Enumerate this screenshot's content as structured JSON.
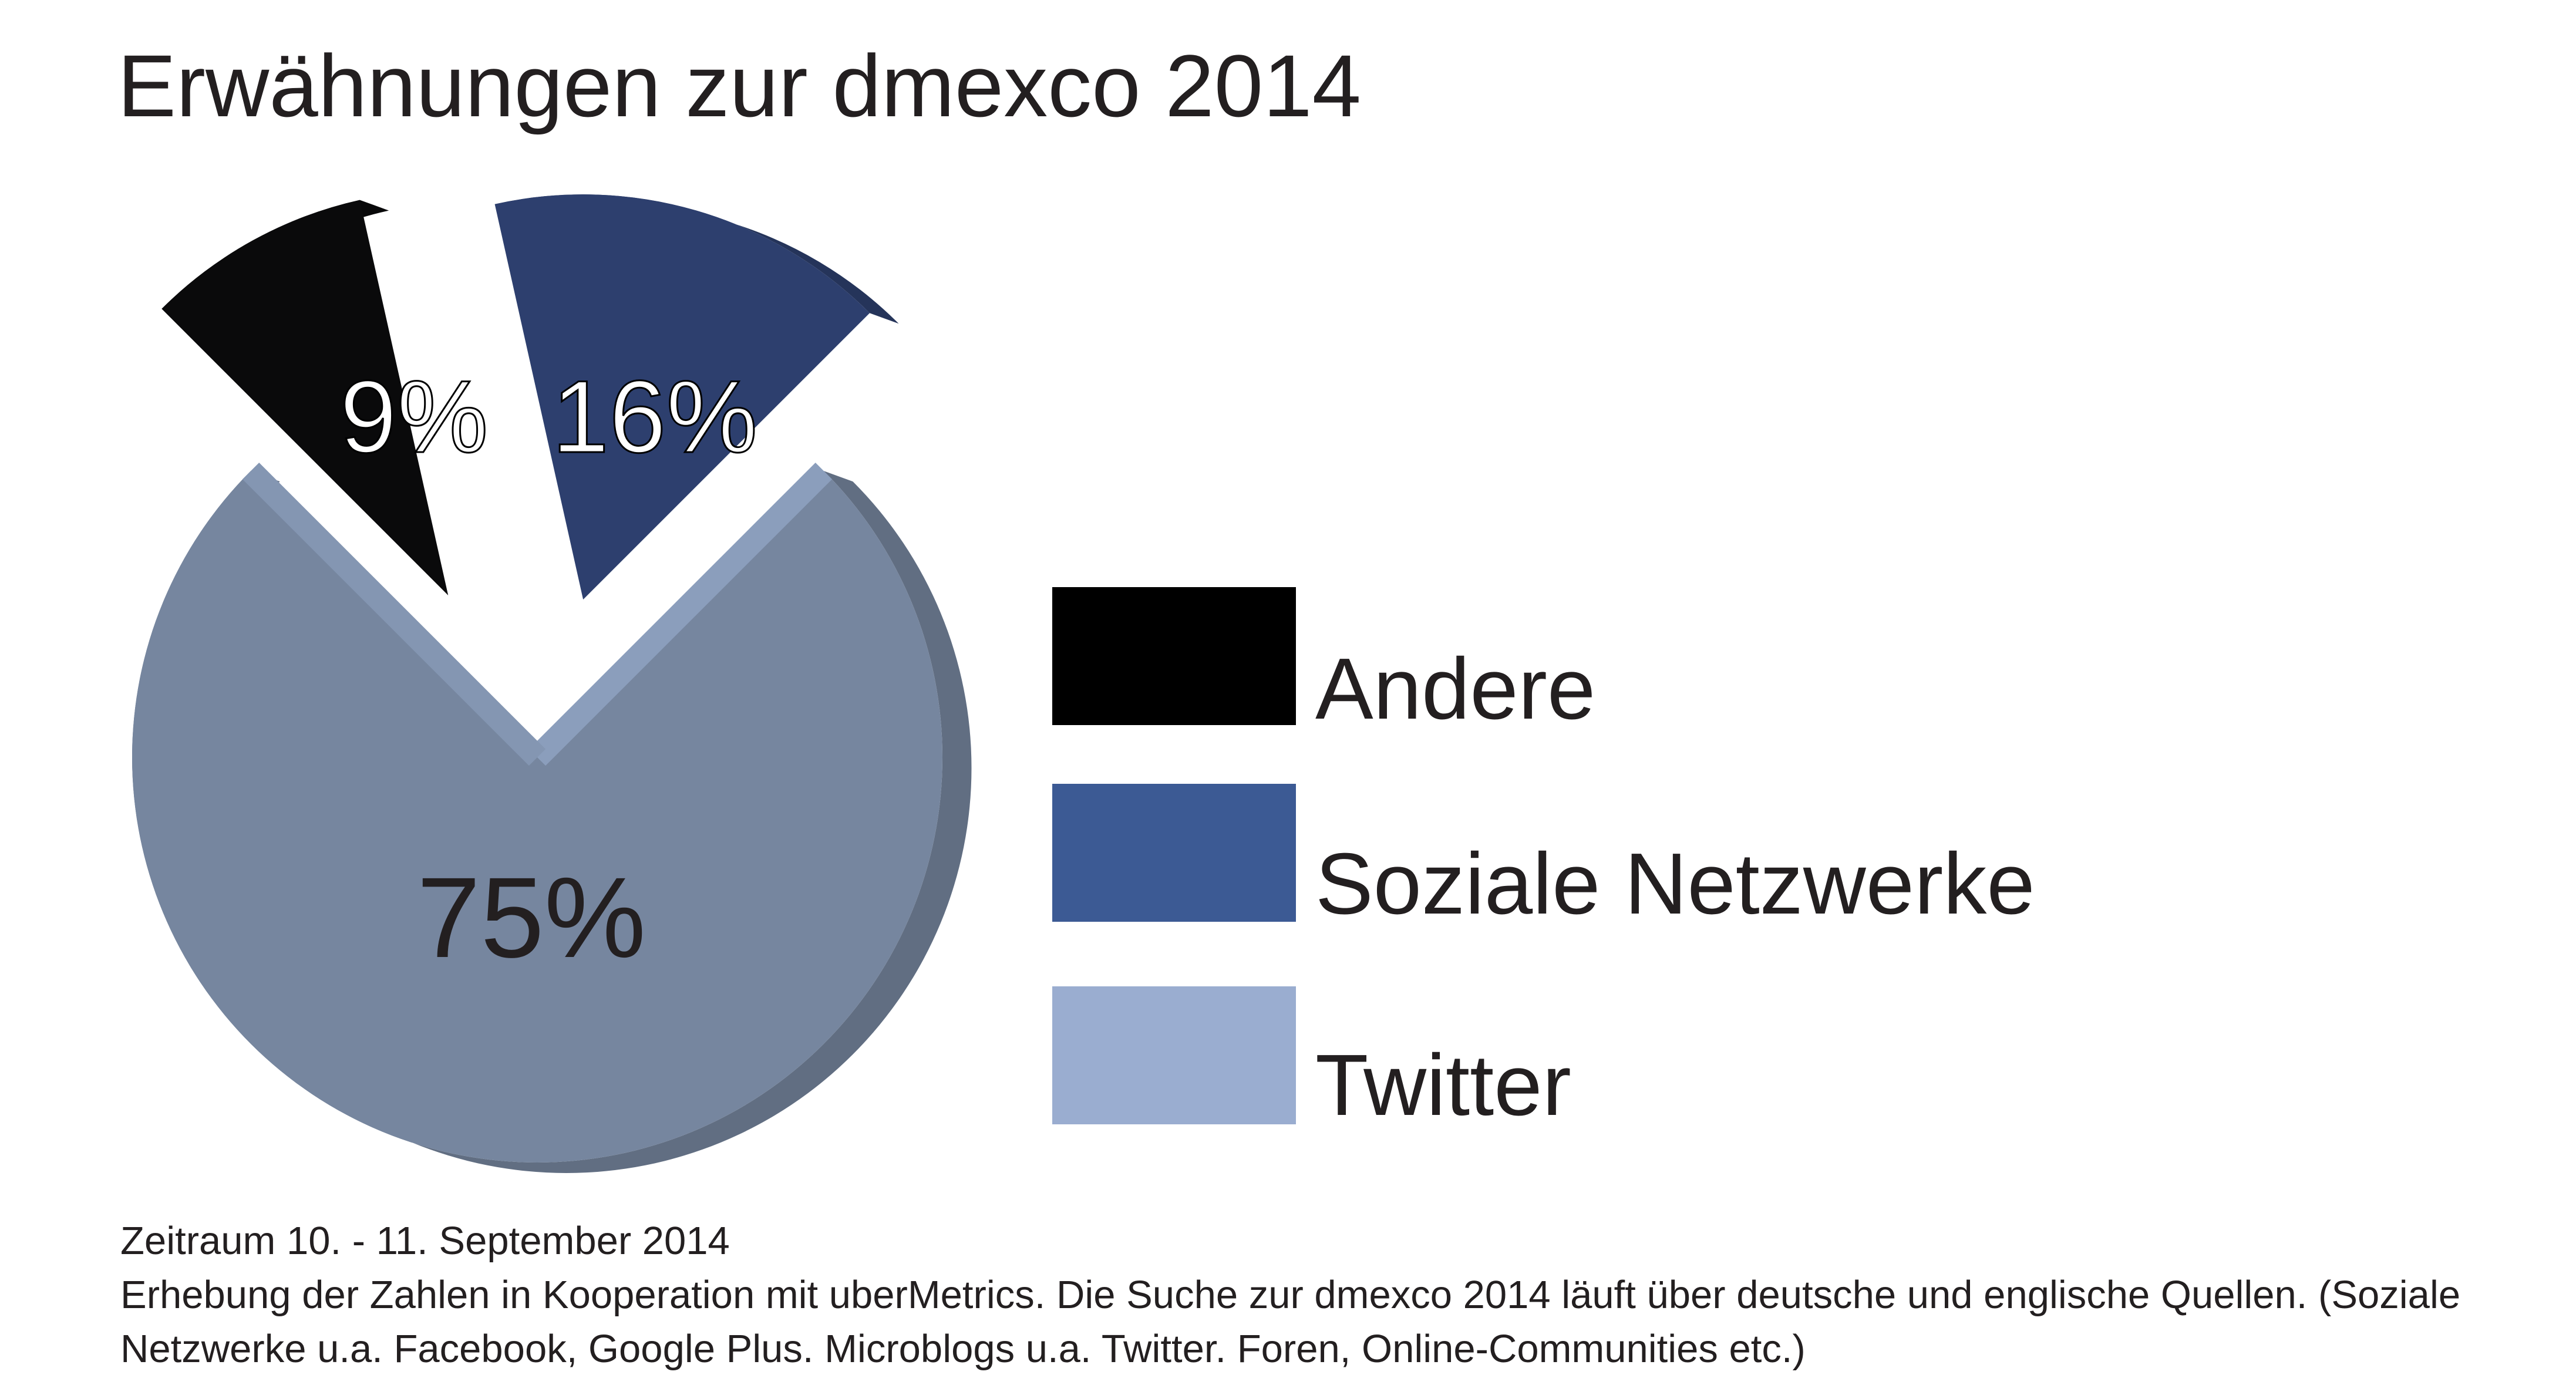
{
  "chart_data": {
    "type": "pie",
    "title": "Erwähnungen zur dmexco 2014",
    "categories": [
      "Andere",
      "Soziale Netzwerke",
      "Twitter"
    ],
    "values": [
      9,
      16,
      75
    ],
    "value_labels": [
      "9%",
      "16%",
      "75%"
    ],
    "unit": "%",
    "colors": [
      "#0a0a0b",
      "#2d3f6e",
      "#76869f"
    ],
    "legend_colors": [
      "#000000",
      "#3c5a94",
      "#9aadd0"
    ],
    "exploded": [
      "Andere",
      "Soziale Netzwerke"
    ],
    "style": "3d",
    "legend_position": "right"
  },
  "legend": {
    "items": [
      {
        "label": "Andere",
        "color": "#000000"
      },
      {
        "label": "Soziale Netzwerke",
        "color": "#3c5a94"
      },
      {
        "label": "Twitter",
        "color": "#9aadd0"
      }
    ]
  },
  "footnote": {
    "line1": "Zeitraum 10. - 11. September 2014",
    "line2": "Erhebung der Zahlen in Kooperation mit uberMetrics. Die Suche zur dmexco 2014 läuft über deutsche und englische Quellen. (Soziale Netzwerke u.a. Facebook, Google Plus. Microblogs u.a. Twitter. Foren, Online-Communities etc.)"
  }
}
